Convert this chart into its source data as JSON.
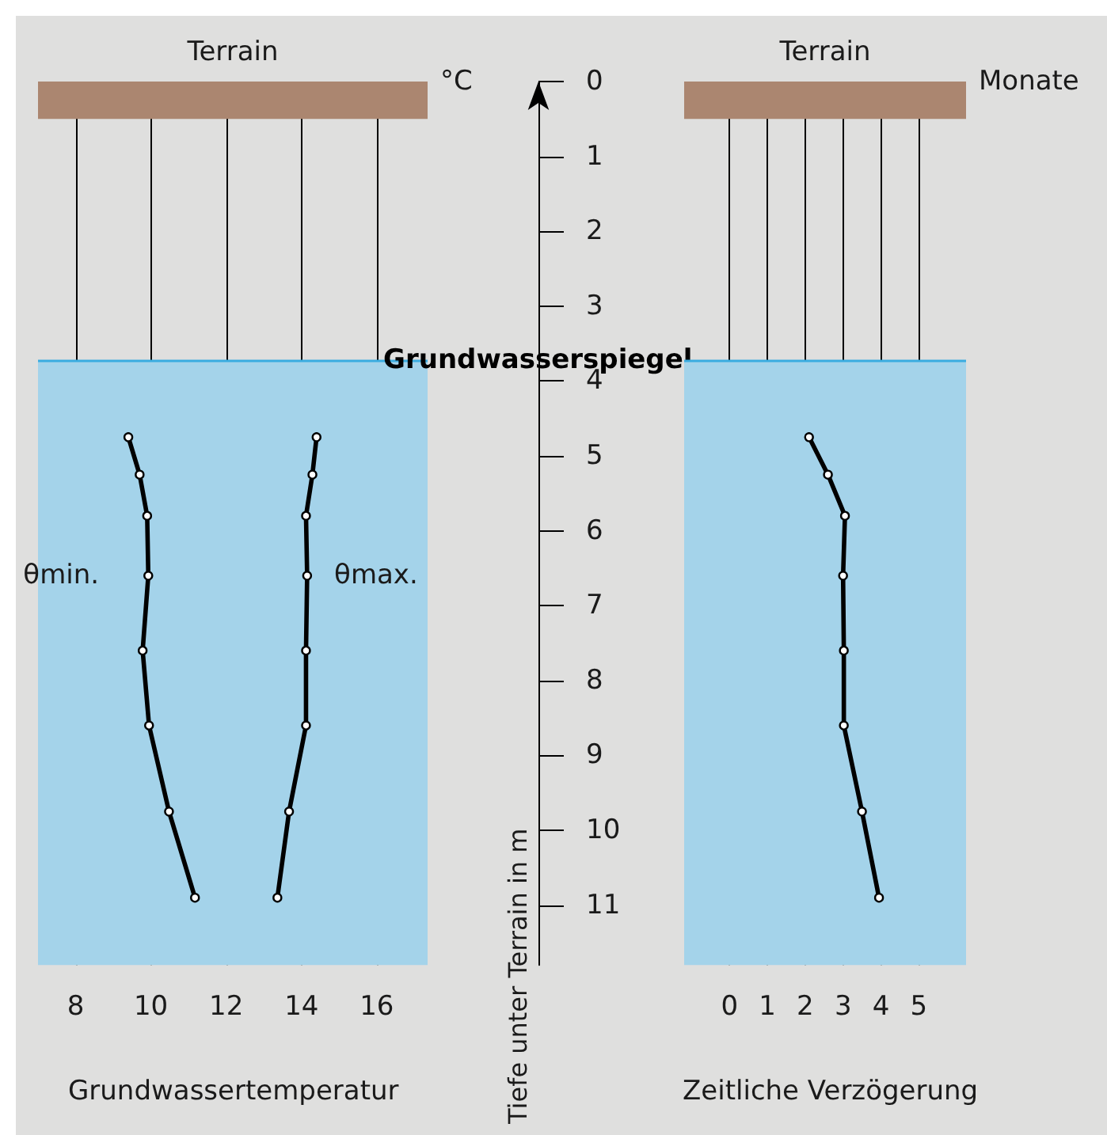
{
  "chart_data": [
    {
      "type": "line",
      "title": "Grundwassertemperatur",
      "xlabel": "°C",
      "ylabel": "Tiefe unter Terrain in m",
      "orientation": "horizontal",
      "x": [
        4.75,
        5.25,
        5.8,
        6.6,
        7.6,
        8.6,
        9.75,
        10.9
      ],
      "series": [
        {
          "name": "θmin.",
          "color": "#000000",
          "values": [
            9.4,
            9.7,
            9.9,
            9.93,
            9.78,
            9.95,
            10.48,
            11.17
          ]
        },
        {
          "name": "θmax.",
          "color": "#000000",
          "values": [
            14.4,
            14.29,
            14.12,
            14.15,
            14.12,
            14.12,
            13.67,
            13.36
          ]
        }
      ],
      "xlim": [
        7,
        17.35
      ],
      "xticks": [
        8,
        10,
        12,
        14,
        16
      ],
      "ylim": [
        11.8,
        0
      ],
      "yticks": [
        0,
        1,
        2,
        3,
        4,
        5,
        6,
        7,
        8,
        9,
        10,
        11
      ],
      "grid": "x",
      "marker": "circle",
      "bands": [
        {
          "axis": "y",
          "from": 0,
          "to": 0.5,
          "label": "Terrain",
          "color": "#ab8670"
        },
        {
          "axis": "y",
          "from": 3.72,
          "to": 11.8,
          "color": "#a4d3ea"
        }
      ],
      "ref_lines": [
        {
          "axis": "y",
          "value": 3.72,
          "label": "Grundwasserspiegel",
          "color": "#3aace0"
        }
      ]
    },
    {
      "type": "line",
      "title": "Zeitliche Verzögerung",
      "xlabel": "Monate",
      "orientation": "horizontal",
      "x": [
        4.75,
        5.25,
        5.8,
        6.6,
        7.6,
        8.6,
        9.75,
        10.9
      ],
      "series": [
        {
          "color": "#000000",
          "values": [
            2.1,
            2.6,
            3.05,
            3.0,
            3.02,
            3.02,
            3.5,
            3.95
          ]
        }
      ],
      "xlim": [
        -1.2,
        6.25
      ],
      "xticks": [
        0,
        1,
        2,
        3,
        4,
        5
      ],
      "ylim": [
        11.8,
        0
      ],
      "yticks": [
        0,
        1,
        2,
        3,
        4,
        5,
        6,
        7,
        8,
        9,
        10,
        11
      ],
      "tick_labels": "x",
      "grid": "x",
      "marker": "circle",
      "bands": [
        {
          "axis": "y",
          "from": 0,
          "to": 0.5,
          "label": "Terrain",
          "color": "#ab8670"
        },
        {
          "axis": "y",
          "from": 3.72,
          "to": 11.8,
          "color": "#a4d3ea"
        }
      ],
      "ref_lines": [
        {
          "axis": "y",
          "value": 3.72,
          "color": "#3aace0"
        }
      ]
    }
  ]
}
